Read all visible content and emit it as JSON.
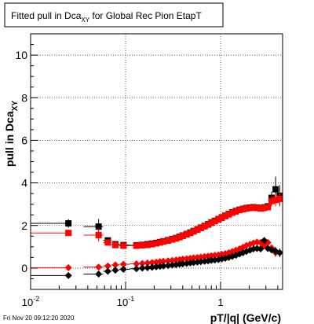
{
  "chart_data": {
    "type": "scatter",
    "title_main": "Fitted pull in Dca",
    "title_sub": "XY",
    "title_rest": " for Global Rec Pion EtapT",
    "ylabel_main": "pull in Dca",
    "ylabel_sub": "XY",
    "xlabel": "pT/|q| (GeV/c)",
    "xscale": "log",
    "xlim": [
      0.01,
      4.5
    ],
    "ylim": [
      -1.0,
      11.0
    ],
    "grid": true,
    "x_ticks": [
      {
        "value": 0.01,
        "base": "10",
        "exp": "-2"
      },
      {
        "value": 0.1,
        "base": "10",
        "exp": "-1"
      },
      {
        "value": 1,
        "base": "1",
        "exp": ""
      }
    ],
    "y_ticks": [
      {
        "value": 0,
        "label": "0"
      },
      {
        "value": 2,
        "label": "2"
      },
      {
        "value": 4,
        "label": "4"
      },
      {
        "value": 6,
        "label": "6"
      },
      {
        "value": 8,
        "label": "8"
      },
      {
        "value": 10,
        "label": "10"
      }
    ],
    "series": [
      {
        "marker": "square",
        "color": "#000000",
        "x": [
          0.025,
          0.052,
          0.065,
          0.078,
          0.095,
          0.13,
          0.15,
          0.17,
          0.19,
          0.21,
          0.23,
          0.25,
          0.28,
          0.31,
          0.34,
          0.37,
          0.4,
          0.44,
          0.48,
          0.52,
          0.57,
          0.62,
          0.68,
          0.74,
          0.8,
          0.87,
          0.95,
          1.03,
          1.12,
          1.22,
          1.33,
          1.45,
          1.58,
          1.72,
          1.87,
          2.04,
          2.22,
          2.42,
          2.64,
          2.88,
          3.15,
          3.45,
          3.8,
          4.2
        ],
        "y": [
          2.1,
          1.95,
          1.3,
          1.12,
          1.08,
          1.07,
          1.09,
          1.12,
          1.15,
          1.18,
          1.22,
          1.26,
          1.31,
          1.36,
          1.41,
          1.47,
          1.53,
          1.6,
          1.67,
          1.74,
          1.82,
          1.9,
          1.98,
          2.06,
          2.14,
          2.22,
          2.3,
          2.38,
          2.46,
          2.54,
          2.62,
          2.68,
          2.74,
          2.78,
          2.82,
          2.84,
          2.86,
          2.84,
          2.82,
          2.85,
          2.9,
          3.3,
          3.7,
          3.4
        ],
        "err_low": [
          0.2,
          0.35,
          0.0,
          0.0,
          0.0,
          0.0,
          0.0,
          0.0,
          0.0,
          0.0,
          0.0,
          0.0,
          0.0,
          0.0,
          0.0,
          0.0,
          0.0,
          0.0,
          0.0,
          0.0,
          0.0,
          0.0,
          0.0,
          0.0,
          0.0,
          0.0,
          0.0,
          0.0,
          0.0,
          0.0,
          0.0,
          0.0,
          0.0,
          0.0,
          0.0,
          0.0,
          0.0,
          0.0,
          0.0,
          0.0,
          0.1,
          0.3,
          0.4,
          0.5
        ],
        "err_high": [
          0.2,
          0.35,
          0.0,
          0.0,
          0.0,
          0.0,
          0.0,
          0.0,
          0.0,
          0.0,
          0.0,
          0.0,
          0.0,
          0.0,
          0.0,
          0.0,
          0.0,
          0.0,
          0.0,
          0.0,
          0.0,
          0.0,
          0.0,
          0.0,
          0.0,
          0.0,
          0.0,
          0.0,
          0.0,
          0.0,
          0.0,
          0.0,
          0.0,
          0.0,
          0.0,
          0.0,
          0.0,
          0.0,
          0.0,
          0.0,
          0.1,
          0.3,
          0.6,
          0.5
        ]
      },
      {
        "marker": "square",
        "color": "#ff0000",
        "x": [
          0.025,
          0.052,
          0.065,
          0.078,
          0.095,
          0.13,
          0.15,
          0.17,
          0.19,
          0.21,
          0.23,
          0.25,
          0.28,
          0.31,
          0.34,
          0.37,
          0.4,
          0.44,
          0.48,
          0.52,
          0.57,
          0.62,
          0.68,
          0.74,
          0.8,
          0.87,
          0.95,
          1.03,
          1.12,
          1.22,
          1.33,
          1.45,
          1.58,
          1.72,
          1.87,
          2.04,
          2.22,
          2.42,
          2.64,
          2.88,
          3.15,
          3.45,
          3.8,
          4.2
        ],
        "y": [
          1.65,
          1.55,
          1.2,
          1.08,
          1.05,
          1.05,
          1.07,
          1.09,
          1.12,
          1.16,
          1.2,
          1.24,
          1.29,
          1.34,
          1.39,
          1.45,
          1.51,
          1.58,
          1.65,
          1.72,
          1.8,
          1.88,
          1.96,
          2.04,
          2.12,
          2.2,
          2.28,
          2.36,
          2.44,
          2.52,
          2.6,
          2.66,
          2.72,
          2.76,
          2.8,
          2.82,
          2.84,
          2.82,
          2.8,
          2.82,
          2.86,
          3.15,
          3.2,
          3.25
        ],
        "err_low": [
          0.15,
          0.3,
          0.0,
          0.0,
          0.0,
          0.0,
          0.0,
          0.0,
          0.0,
          0.0,
          0.0,
          0.0,
          0.0,
          0.0,
          0.0,
          0.0,
          0.0,
          0.0,
          0.0,
          0.0,
          0.0,
          0.0,
          0.0,
          0.0,
          0.0,
          0.0,
          0.0,
          0.0,
          0.0,
          0.0,
          0.0,
          0.0,
          0.0,
          0.0,
          0.0,
          0.0,
          0.0,
          0.0,
          0.0,
          0.0,
          0.1,
          0.25,
          0.3,
          0.35
        ],
        "err_high": [
          0.15,
          0.3,
          0.0,
          0.0,
          0.0,
          0.0,
          0.0,
          0.0,
          0.0,
          0.0,
          0.0,
          0.0,
          0.0,
          0.0,
          0.0,
          0.0,
          0.0,
          0.0,
          0.0,
          0.0,
          0.0,
          0.0,
          0.0,
          0.0,
          0.0,
          0.0,
          0.0,
          0.0,
          0.0,
          0.0,
          0.0,
          0.0,
          0.0,
          0.0,
          0.0,
          0.0,
          0.0,
          0.0,
          0.0,
          0.0,
          0.1,
          0.25,
          0.3,
          0.35
        ]
      },
      {
        "marker": "diamond",
        "color": "#ff0000",
        "x": [
          0.025,
          0.052,
          0.065,
          0.078,
          0.095,
          0.13,
          0.15,
          0.17,
          0.19,
          0.21,
          0.23,
          0.25,
          0.28,
          0.31,
          0.34,
          0.37,
          0.4,
          0.44,
          0.48,
          0.52,
          0.57,
          0.62,
          0.68,
          0.74,
          0.8,
          0.87,
          0.95,
          1.03,
          1.12,
          1.22,
          1.33,
          1.45,
          1.58,
          1.72,
          1.87,
          2.04,
          2.22,
          2.42,
          2.64,
          2.88,
          3.15,
          3.45,
          3.8,
          4.2
        ],
        "y": [
          0.02,
          0.05,
          0.1,
          0.15,
          0.18,
          0.2,
          0.22,
          0.24,
          0.26,
          0.28,
          0.3,
          0.32,
          0.34,
          0.36,
          0.38,
          0.4,
          0.42,
          0.44,
          0.46,
          0.48,
          0.5,
          0.52,
          0.54,
          0.56,
          0.58,
          0.6,
          0.62,
          0.65,
          0.68,
          0.72,
          0.78,
          0.84,
          0.9,
          0.98,
          1.06,
          1.12,
          1.18,
          1.22,
          1.2,
          1.05,
          1.2,
          0.95,
          0.72,
          0.72
        ],
        "err_low": [
          0.05,
          0.05,
          0.0,
          0.0,
          0.0,
          0.0,
          0.0,
          0.0,
          0.0,
          0.0,
          0.0,
          0.0,
          0.0,
          0.0,
          0.0,
          0.0,
          0.0,
          0.0,
          0.0,
          0.0,
          0.0,
          0.0,
          0.0,
          0.0,
          0.0,
          0.0,
          0.0,
          0.0,
          0.0,
          0.0,
          0.0,
          0.0,
          0.0,
          0.0,
          0.0,
          0.0,
          0.0,
          0.0,
          0.0,
          0.0,
          0.1,
          0.15,
          0.2,
          0.2
        ],
        "err_high": [
          0.05,
          0.05,
          0.0,
          0.0,
          0.0,
          0.0,
          0.0,
          0.0,
          0.0,
          0.0,
          0.0,
          0.0,
          0.0,
          0.0,
          0.0,
          0.0,
          0.0,
          0.0,
          0.0,
          0.0,
          0.0,
          0.0,
          0.0,
          0.0,
          0.0,
          0.0,
          0.0,
          0.0,
          0.0,
          0.0,
          0.0,
          0.0,
          0.0,
          0.0,
          0.0,
          0.0,
          0.0,
          0.0,
          0.0,
          0.0,
          0.1,
          0.15,
          0.2,
          0.2
        ]
      },
      {
        "marker": "diamond",
        "color": "#000000",
        "x": [
          0.025,
          0.052,
          0.065,
          0.078,
          0.095,
          0.13,
          0.15,
          0.17,
          0.19,
          0.21,
          0.23,
          0.25,
          0.28,
          0.31,
          0.34,
          0.37,
          0.4,
          0.44,
          0.48,
          0.52,
          0.57,
          0.62,
          0.68,
          0.74,
          0.8,
          0.87,
          0.95,
          1.03,
          1.12,
          1.22,
          1.33,
          1.45,
          1.58,
          1.72,
          1.87,
          2.04,
          2.22,
          2.42,
          2.64,
          2.88,
          3.15,
          3.45,
          3.8,
          4.2
        ],
        "y": [
          -0.35,
          -0.28,
          -0.15,
          -0.1,
          -0.06,
          -0.03,
          0.0,
          0.02,
          0.04,
          0.06,
          0.08,
          0.1,
          0.12,
          0.14,
          0.16,
          0.18,
          0.2,
          0.22,
          0.24,
          0.26,
          0.28,
          0.3,
          0.32,
          0.34,
          0.36,
          0.38,
          0.4,
          0.43,
          0.46,
          0.5,
          0.55,
          0.6,
          0.66,
          0.72,
          0.78,
          0.84,
          0.9,
          0.92,
          0.9,
          1.3,
          0.92,
          0.85,
          0.8,
          0.72
        ],
        "err_low": [
          0.05,
          0.05,
          0.0,
          0.0,
          0.0,
          0.0,
          0.0,
          0.0,
          0.0,
          0.0,
          0.0,
          0.0,
          0.0,
          0.0,
          0.0,
          0.0,
          0.0,
          0.0,
          0.0,
          0.0,
          0.0,
          0.0,
          0.0,
          0.0,
          0.0,
          0.0,
          0.0,
          0.0,
          0.0,
          0.0,
          0.0,
          0.0,
          0.0,
          0.0,
          0.0,
          0.0,
          0.0,
          0.0,
          0.0,
          0.0,
          0.1,
          0.15,
          0.2,
          0.2
        ],
        "err_high": [
          0.05,
          0.05,
          0.0,
          0.0,
          0.0,
          0.0,
          0.0,
          0.0,
          0.0,
          0.0,
          0.0,
          0.0,
          0.0,
          0.0,
          0.0,
          0.0,
          0.0,
          0.0,
          0.0,
          0.0,
          0.0,
          0.0,
          0.0,
          0.0,
          0.0,
          0.0,
          0.0,
          0.0,
          0.0,
          0.0,
          0.0,
          0.0,
          0.0,
          0.0,
          0.0,
          0.0,
          0.0,
          0.0,
          0.0,
          0.0,
          0.1,
          0.15,
          0.2,
          0.2
        ]
      }
    ]
  },
  "footer": {
    "timestamp": "Fri Nov 20 09:12:20 2020"
  }
}
